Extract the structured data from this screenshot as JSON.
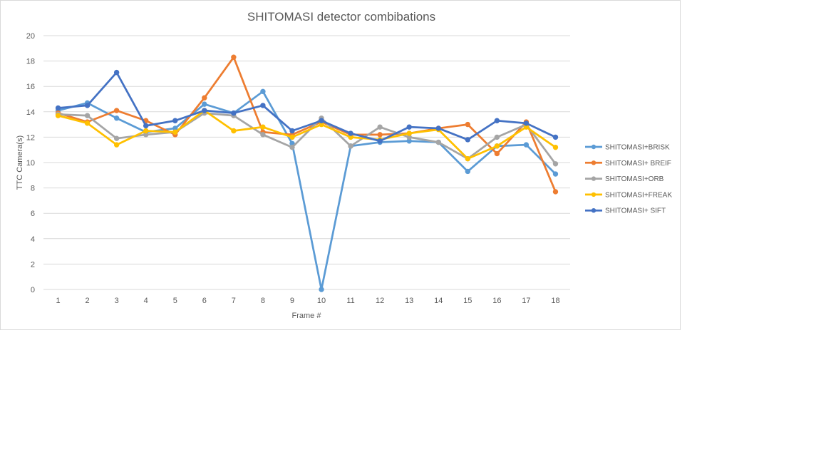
{
  "chart_data": {
    "type": "line",
    "title": "SHITOMASI detector combibations",
    "xlabel": "Frame #",
    "ylabel": "TTC Camera(s)",
    "ylim": [
      0,
      20
    ],
    "yticks": [
      0,
      2,
      4,
      6,
      8,
      10,
      12,
      14,
      16,
      18,
      20
    ],
    "grid": "horizontal",
    "legend": "right",
    "categories": [
      "1",
      "2",
      "3",
      "4",
      "5",
      "6",
      "7",
      "8",
      "9",
      "10",
      "11",
      "12",
      "13",
      "14",
      "15",
      "16",
      "17",
      "18"
    ],
    "series": [
      {
        "name": "SHITOMASI+BRISK",
        "color": "#5b9bd5",
        "values": [
          14.1,
          14.7,
          13.5,
          12.4,
          12.7,
          14.6,
          13.9,
          15.6,
          11.5,
          0.0,
          11.3,
          11.6,
          11.7,
          11.6,
          9.3,
          11.3,
          11.4,
          9.1
        ]
      },
      {
        "name": "SHITOMASI+ BREIF",
        "color": "#ed7d31",
        "values": [
          13.9,
          13.2,
          14.1,
          13.3,
          12.2,
          15.1,
          18.3,
          12.4,
          12.2,
          13.2,
          12.2,
          12.2,
          12.3,
          12.7,
          13.0,
          10.7,
          13.2,
          7.7
        ]
      },
      {
        "name": "SHITOMASI+ORB",
        "color": "#a5a5a5",
        "values": [
          13.8,
          13.7,
          11.9,
          12.2,
          12.4,
          13.9,
          13.7,
          12.2,
          11.2,
          13.5,
          11.3,
          12.8,
          12.0,
          11.6,
          10.3,
          12.0,
          13.0,
          9.9
        ]
      },
      {
        "name": "SHITOMASI+FREAK",
        "color": "#ffc000",
        "values": [
          13.7,
          13.1,
          11.4,
          12.5,
          12.4,
          14.1,
          12.5,
          12.8,
          12.0,
          13.0,
          12.0,
          11.8,
          12.3,
          12.6,
          10.3,
          11.3,
          12.8,
          11.2
        ]
      },
      {
        "name": "SHITOMASI+ SIFT",
        "color": "#4472c4",
        "values": [
          14.3,
          14.5,
          17.1,
          12.9,
          13.3,
          14.1,
          13.9,
          14.5,
          12.5,
          13.3,
          12.3,
          11.7,
          12.8,
          12.7,
          11.8,
          13.3,
          13.1,
          12.0
        ]
      }
    ]
  }
}
